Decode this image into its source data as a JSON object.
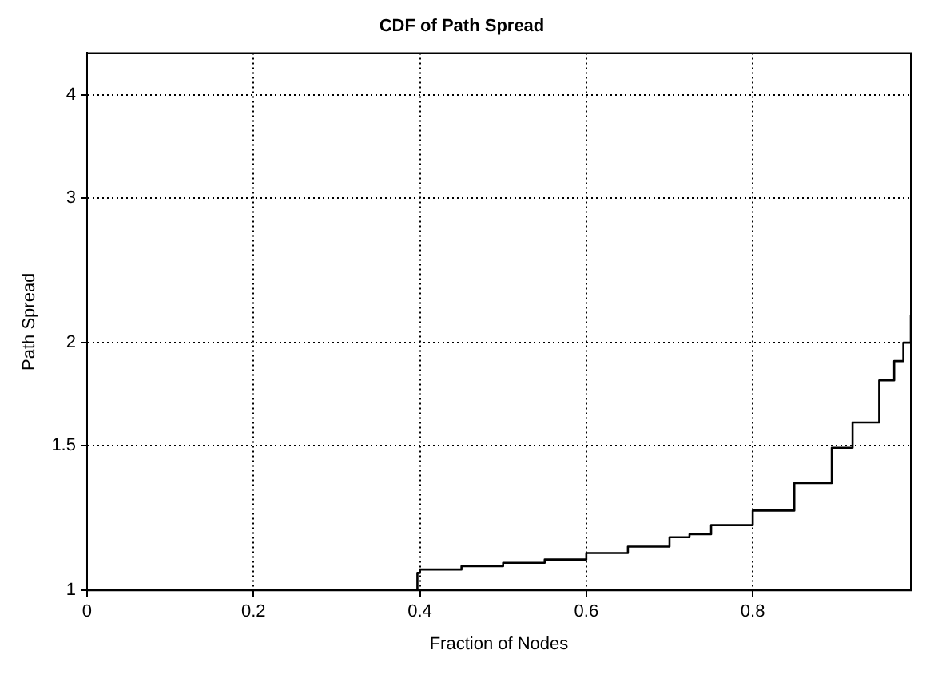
{
  "chart_data": {
    "type": "step",
    "title": "CDF of Path Spread",
    "xlabel": "Fraction of Nodes",
    "ylabel": "Path Spread",
    "series": [
      {
        "color": "#000000",
        "x": [
          0,
          0.397,
          0.4,
          0.45,
          0.5,
          0.55,
          0.6,
          0.65,
          0.7,
          0.724,
          0.75,
          0.8,
          0.85,
          0.895,
          0.92,
          0.952,
          0.97,
          0.981,
          0.99
        ],
        "values": [
          1,
          1.05,
          1.06,
          1.07,
          1.08,
          1.09,
          1.11,
          1.13,
          1.16,
          1.17,
          1.2,
          1.25,
          1.35,
          1.49,
          1.6,
          1.8,
          1.9,
          2,
          2.16
        ]
      }
    ],
    "xlim": [
      0,
      0.99
    ],
    "xticks": [
      0,
      0.2,
      0.4,
      0.6,
      0.8
    ],
    "ylim": [
      1,
      4.5
    ],
    "yticks": [
      1,
      1.5,
      2,
      3,
      4
    ],
    "log": "y",
    "grid": true,
    "legend": false
  }
}
